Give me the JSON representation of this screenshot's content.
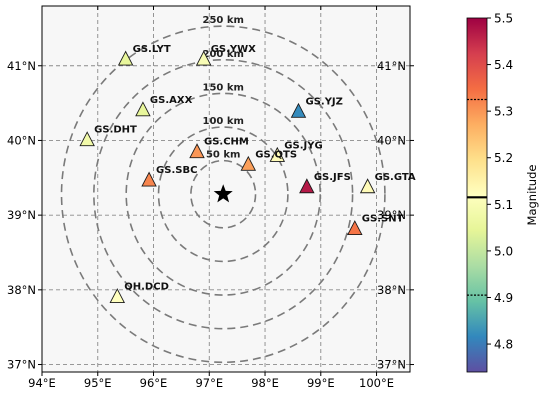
{
  "chart_data": {
    "type": "scatter",
    "title": "",
    "xlabel": "",
    "ylabel": "",
    "xlim": [
      94.0,
      100.6
    ],
    "ylim": [
      36.9,
      41.8
    ],
    "xticks": [
      94,
      95,
      96,
      97,
      98,
      99,
      100
    ],
    "xtick_labels": [
      "94°E",
      "95°E",
      "96°E",
      "97°E",
      "98°E",
      "99°E",
      "100°E"
    ],
    "yticks": [
      37,
      38,
      39,
      40,
      41
    ],
    "ytick_labels": [
      "37°N",
      "38°N",
      "39°N",
      "40°N",
      "41°N"
    ],
    "grid": true,
    "epicenter": {
      "lon": 97.25,
      "lat": 39.28,
      "marker": "star"
    },
    "rings": [
      {
        "label": "50 km"
      },
      {
        "label": "100 km"
      },
      {
        "label": "150 km"
      },
      {
        "label": "200 km"
      },
      {
        "label": "250 km"
      }
    ],
    "ring_radius_deg_lat": [
      0.45,
      0.9,
      1.35,
      1.8,
      2.25
    ],
    "ring_radius_deg_lon": [
      0.58,
      1.16,
      1.74,
      2.32,
      2.9
    ],
    "stations": [
      {
        "name": "GS.LYT",
        "lon": 95.5,
        "lat": 41.09,
        "magnitude": 5.05
      },
      {
        "name": "GS.YWX",
        "lon": 96.9,
        "lat": 41.09,
        "magnitude": 5.1
      },
      {
        "name": "GS.AXX",
        "lon": 95.81,
        "lat": 40.41,
        "magnitude": 5.05
      },
      {
        "name": "GS.YJZ",
        "lon": 98.6,
        "lat": 40.39,
        "magnitude": 4.82
      },
      {
        "name": "GS.DHT",
        "lon": 94.81,
        "lat": 40.01,
        "magnitude": 5.08
      },
      {
        "name": "GS.CHM",
        "lon": 96.78,
        "lat": 39.85,
        "magnitude": 5.3
      },
      {
        "name": "GS.JYG",
        "lon": 98.22,
        "lat": 39.8,
        "magnitude": 5.13
      },
      {
        "name": "GS.QTS",
        "lon": 97.7,
        "lat": 39.68,
        "magnitude": 5.29
      },
      {
        "name": "GS.SBC",
        "lon": 95.92,
        "lat": 39.47,
        "magnitude": 5.32
      },
      {
        "name": "GS.JFS",
        "lon": 98.75,
        "lat": 39.38,
        "magnitude": 5.47
      },
      {
        "name": "GS.GTA",
        "lon": 99.84,
        "lat": 39.38,
        "magnitude": 5.13
      },
      {
        "name": "GS.SNT",
        "lon": 99.61,
        "lat": 38.82,
        "magnitude": 5.34
      },
      {
        "name": "QH.DCD",
        "lon": 95.35,
        "lat": 37.91,
        "magnitude": 5.12
      }
    ],
    "colorbar": {
      "label": "Magnitude",
      "min": 4.74,
      "max": 5.5,
      "ticks": [
        4.8,
        4.9,
        5.0,
        5.1,
        5.2,
        5.3,
        5.4,
        5.5
      ],
      "tick_labels": [
        "4.8",
        "4.9",
        "5.0",
        "5.1",
        "5.2",
        "5.3",
        "5.4",
        "5.5"
      ],
      "mean_line": 5.115,
      "dotted_lines": [
        4.905,
        5.325
      ],
      "colormap": "Spectral_r",
      "colormap_stops": [
        "#5e4fa2",
        "#3288bd",
        "#66c2a5",
        "#abdda4",
        "#e6f598",
        "#ffffbf",
        "#fee08b",
        "#fdae61",
        "#f46d43",
        "#d53e4f",
        "#9e0142"
      ]
    }
  }
}
